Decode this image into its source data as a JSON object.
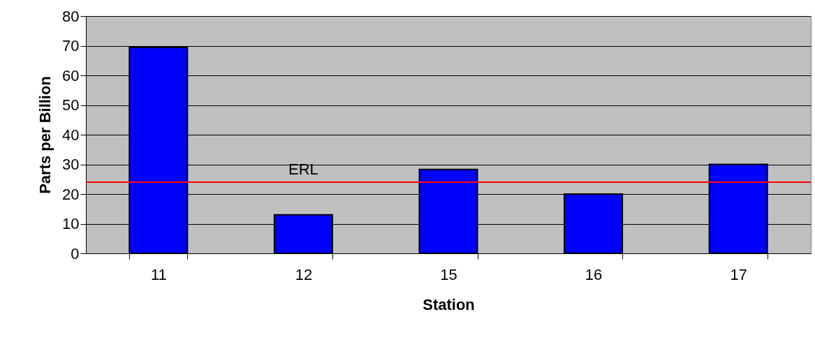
{
  "chart_data": {
    "type": "bar",
    "xlabel": "Station",
    "ylabel": "Parts per Billion",
    "categories": [
      "11",
      "12",
      "15",
      "16",
      "17"
    ],
    "values": [
      69.5,
      13,
      28.3,
      20,
      30
    ],
    "color": "#0000ff",
    "ylim": [
      0,
      80
    ],
    "yticks": [
      0,
      10,
      20,
      30,
      40,
      50,
      60,
      70,
      80
    ],
    "grid": "y",
    "ref_lines": [
      {
        "axis": "y",
        "value": 24,
        "label": "ERL",
        "color": "#ff0000"
      }
    ]
  }
}
